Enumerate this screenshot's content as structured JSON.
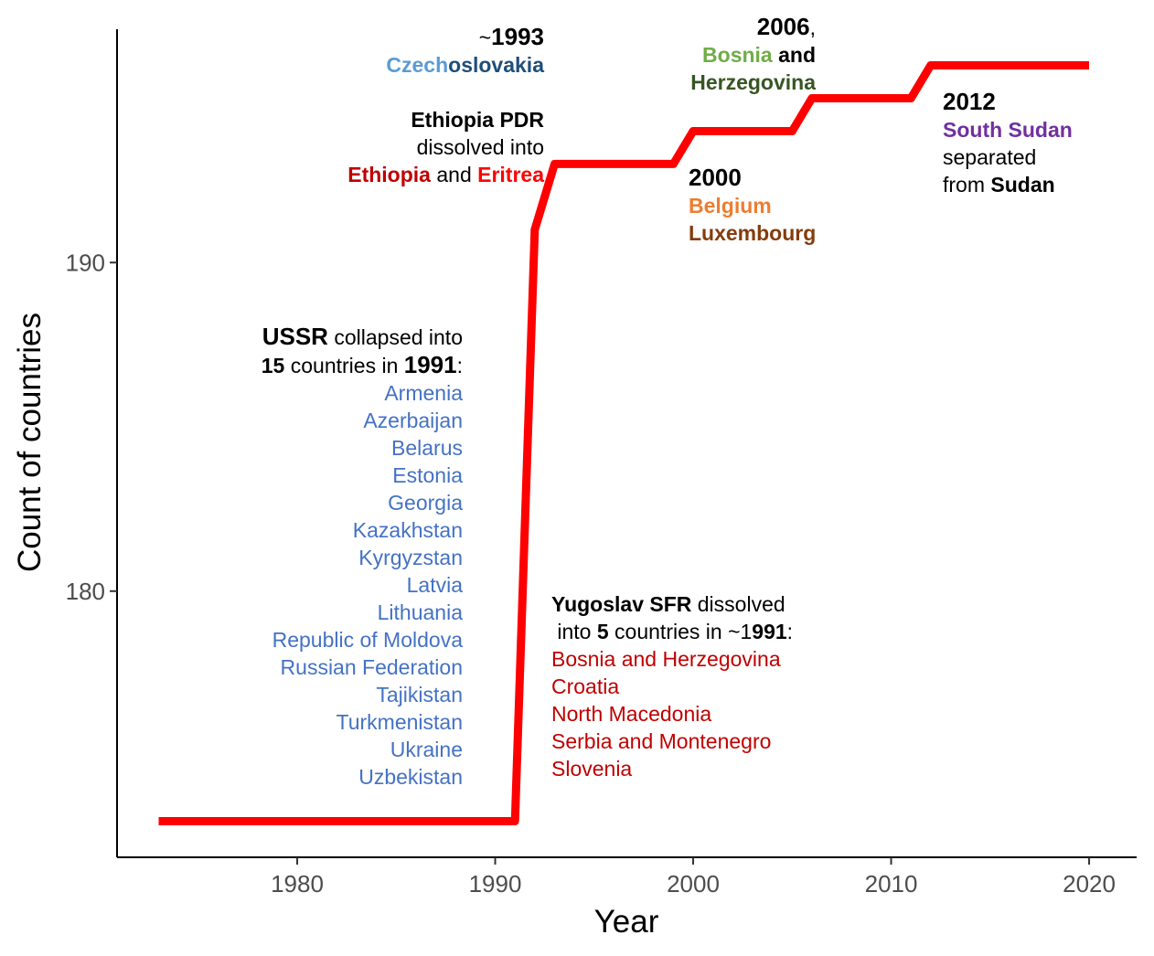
{
  "chart_data": {
    "type": "line",
    "xlabel": "Year",
    "ylabel": "Count of countries",
    "xlim": [
      1970.9,
      2022.4
    ],
    "ylim": [
      171.9,
      197.1
    ],
    "x_ticks": [
      1980,
      1990,
      2000,
      2010,
      2020
    ],
    "y_ticks": [
      180,
      190
    ],
    "grid": false,
    "line_color": "#ff0000",
    "series": [
      {
        "points": [
          [
            1973,
            173
          ],
          [
            1991,
            173
          ],
          [
            1992,
            191
          ],
          [
            1993,
            193
          ],
          [
            1999,
            193
          ],
          [
            2000,
            194
          ],
          [
            2005,
            194
          ],
          [
            2006,
            195
          ],
          [
            2011,
            195
          ],
          [
            2012,
            196
          ],
          [
            2020,
            196
          ]
        ]
      }
    ]
  },
  "colors": {
    "ussr_countries": "#4472c4",
    "yugoslav_countries": "#c00000",
    "czech": "#5b9bd5",
    "slovakia": "#1f4e79",
    "ethiopia": "#c00000",
    "eritrea": "#ff0000",
    "bosnia": "#70ad47",
    "herzegovina": "#375623",
    "belgium": "#ed7d31",
    "luxembourg": "#843c0c",
    "south_sudan": "#7030a0"
  },
  "annotations": {
    "czechoslovakia": {
      "year_prefix": "~",
      "year": "1993",
      "part1": "Czech",
      "part2": "oslovakia"
    },
    "ethiopia": {
      "line1": "Ethiopia PDR",
      "line2": "dissolved into",
      "country1": "Ethiopia",
      "and": " and ",
      "country2": "Eritrea"
    },
    "bosnia": {
      "year": "2006",
      "comma": ",",
      "part1": "Bosnia",
      "and": " and",
      "part2": "Herzegovina"
    },
    "belgium": {
      "year": "2000",
      "line1": "Belgium",
      "line2": "Luxembourg"
    },
    "south_sudan": {
      "year": "2012",
      "country": "South Sudan",
      "line2": "separated",
      "from_text": "from ",
      "from_country": "Sudan"
    },
    "ussr": {
      "name": "USSR",
      "text1": " collapsed into",
      "count": "15",
      "text2": " countries in ",
      "year": "1991",
      "colon": ":",
      "countries": [
        "Armenia",
        "Azerbaijan",
        "Belarus",
        "Estonia",
        "Georgia",
        "Kazakhstan",
        "Kyrgyzstan",
        "Latvia",
        "Lithuania",
        "Republic of Moldova",
        "Russian Federation",
        "Tajikistan",
        "Turkmenistan",
        "Ukraine",
        "Uzbekistan"
      ]
    },
    "yugoslav": {
      "name": "Yugoslav SFR",
      "text1": " dissolved",
      "text2": " into ",
      "count": "5",
      "text3": " countries in ~1",
      "year_rest": "991",
      "colon": ":",
      "countries": [
        "Bosnia and Herzegovina",
        "Croatia",
        "North Macedonia",
        "Serbia and Montenegro",
        "Slovenia"
      ]
    }
  }
}
